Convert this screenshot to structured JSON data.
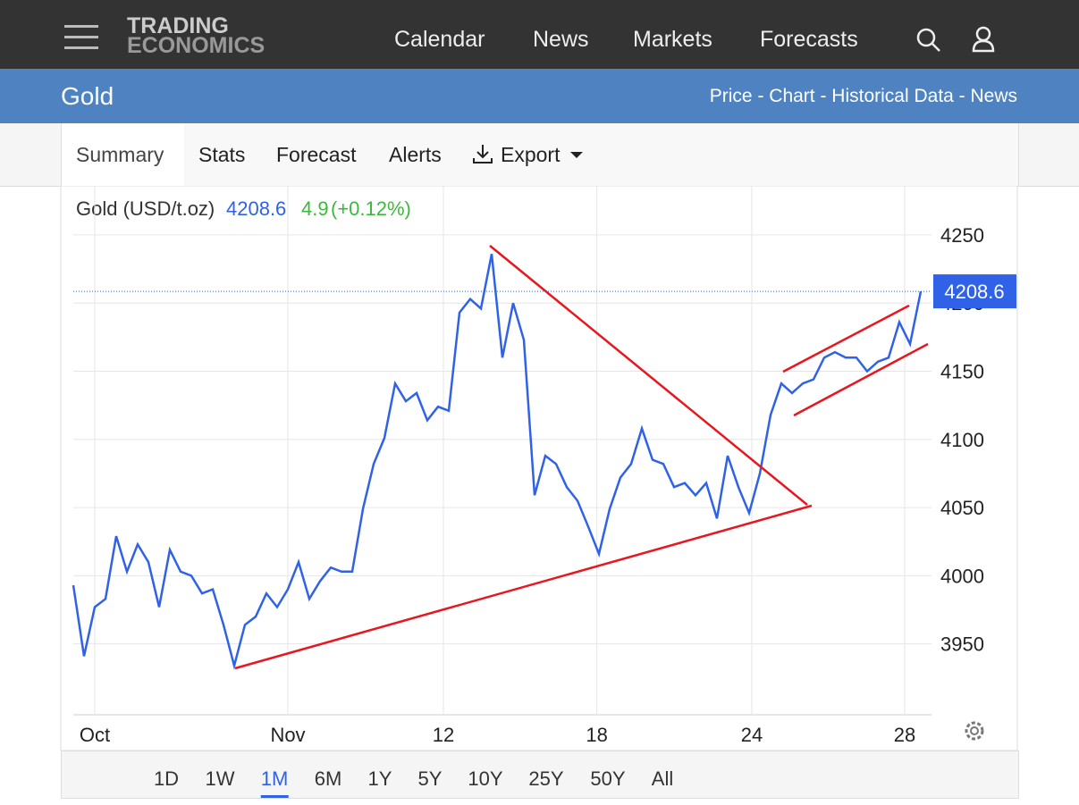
{
  "header": {
    "logo_top": "TRADING",
    "logo_bottom": "ECONOMICS",
    "nav": [
      "Calendar",
      "News",
      "Markets",
      "Forecasts"
    ]
  },
  "title_bar": {
    "title": "Gold",
    "links": "Price - Chart - Historical Data - News"
  },
  "tabs": [
    "Summary",
    "Stats",
    "Forecast",
    "Alerts",
    "Export"
  ],
  "ranges": [
    "1D",
    "1W",
    "1M",
    "6M",
    "1Y",
    "5Y",
    "10Y",
    "25Y",
    "50Y",
    "All"
  ],
  "chart_data": {
    "type": "line",
    "title": "Gold (USD/t.oz)",
    "last": 4208.6,
    "change": 4.9,
    "change_label": "(+0.12%)",
    "x": [
      0,
      1,
      2,
      3,
      4,
      5,
      6,
      7,
      8,
      9,
      10,
      11,
      12,
      13,
      14,
      15,
      16,
      17,
      18,
      19,
      20,
      21,
      22,
      23,
      24,
      25,
      26,
      27,
      28,
      29,
      30,
      31,
      32,
      33,
      34,
      35,
      36,
      37,
      38,
      39,
      40,
      41,
      42,
      43,
      44,
      45,
      46,
      47,
      48,
      49,
      50,
      51,
      52,
      53,
      54,
      55,
      56,
      57,
      58,
      59,
      60,
      61,
      62,
      63,
      64,
      65,
      66,
      67,
      68,
      69,
      70,
      71,
      72,
      73,
      74,
      75,
      76,
      77,
      78,
      79
    ],
    "series": [
      {
        "name": "Gold",
        "color": "#2f62e6",
        "values": [
          3993,
          3941,
          3977,
          3983,
          4029,
          4003,
          4023,
          4010,
          3977,
          4019,
          4003,
          4000,
          3987,
          3990,
          3964,
          3934,
          3964,
          3970,
          3987,
          3977,
          3990,
          4010,
          3983,
          3996,
          4006,
          4003,
          4003,
          4049,
          4082,
          4101,
          4141,
          4128,
          4134,
          4114,
          4124,
          4121,
          4193,
          4203,
          4196,
          4236,
          4160,
          4200,
          4173,
          4059,
          4088,
          4082,
          4065,
          4055,
          4036,
          4016,
          4049,
          4072,
          4082,
          4108,
          4085,
          4082,
          4065,
          4068,
          4059,
          4068,
          4042,
          4088,
          4065,
          4046,
          4075,
          4118,
          4141,
          4134,
          4141,
          4144,
          4160,
          4164,
          4160,
          4160,
          4150,
          4157,
          4160,
          4186,
          4170,
          4208.6
        ]
      }
    ],
    "xlim": [
      0,
      80
    ],
    "ylim": [
      3898,
      4286
    ],
    "xticks": [
      {
        "value": 2,
        "label": "Oct"
      },
      {
        "value": 20,
        "label": "Nov"
      },
      {
        "value": 34.5,
        "label": "12"
      },
      {
        "value": 48.8,
        "label": "18"
      },
      {
        "value": 63.25,
        "label": "24"
      },
      {
        "value": 77.5,
        "label": "28"
      }
    ],
    "yticks": [
      3950,
      4000,
      4050,
      4100,
      4150,
      4200,
      4250
    ],
    "grid": true
  }
}
